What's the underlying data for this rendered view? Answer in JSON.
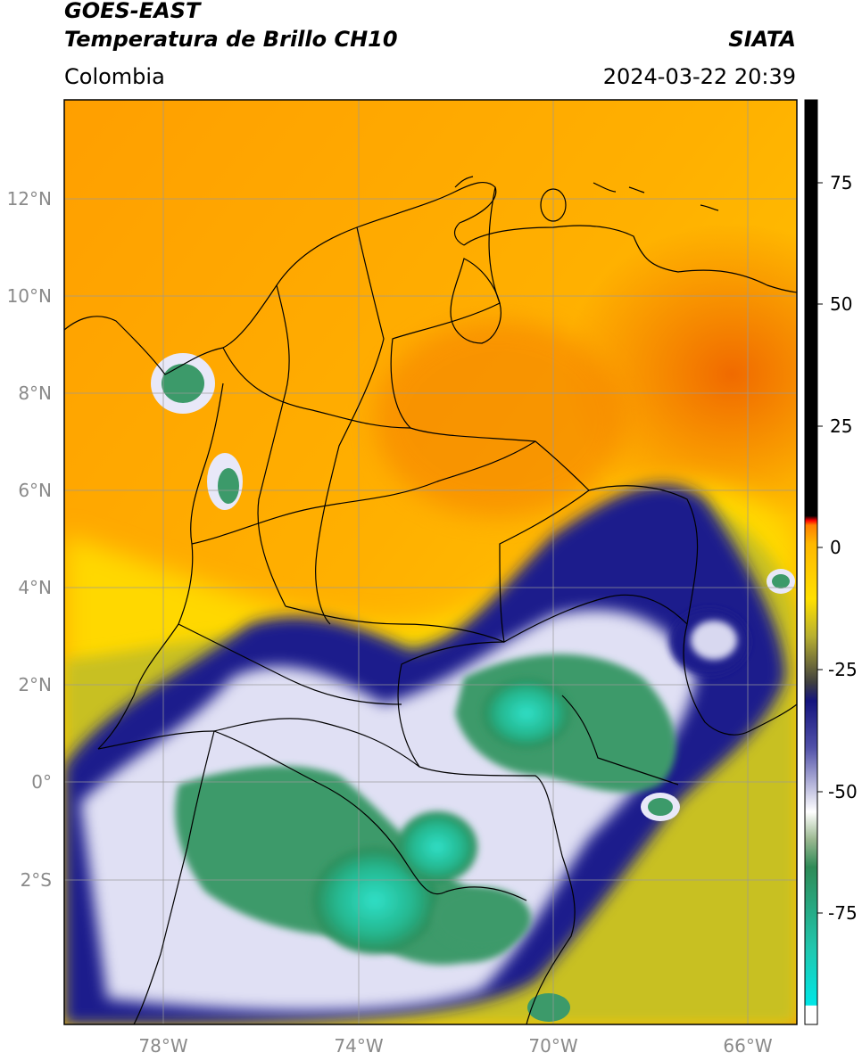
{
  "header": {
    "satellite": "GOES-EAST",
    "product": "Temperatura de Brillo CH10",
    "region": "Colombia",
    "agency": "SIATA",
    "timestamp": "2024-03-22 20:39"
  },
  "map": {
    "lat_labels": [
      "12°N",
      "10°N",
      "8°N",
      "6°N",
      "4°N",
      "2°N",
      "0°",
      "2°S"
    ],
    "lon_labels": [
      "78°W",
      "74°W",
      "70°W",
      "66°W"
    ],
    "colors": {
      "warm_orange": "#ff9f00",
      "orange": "#ffb000",
      "deep_orange": "#f07000",
      "yellow": "#ffd800",
      "olive": "#c8c020",
      "navy": "#1a1a8c",
      "white": "#ffffff",
      "green": "#2e8b57",
      "teal": "#20c0a0",
      "border": "#000000",
      "grid": "#999999"
    }
  },
  "colorbar": {
    "tick_labels": [
      "75",
      "50",
      "25",
      "0",
      "-25",
      "-50",
      "-75"
    ],
    "colors": [
      "#ffffff",
      "#00e0e0",
      "#2e8b57",
      "#ffffff",
      "#1a1a8c",
      "#c8c020",
      "#ffd800",
      "#ff9f00",
      "#ff0000",
      "#000000"
    ]
  }
}
